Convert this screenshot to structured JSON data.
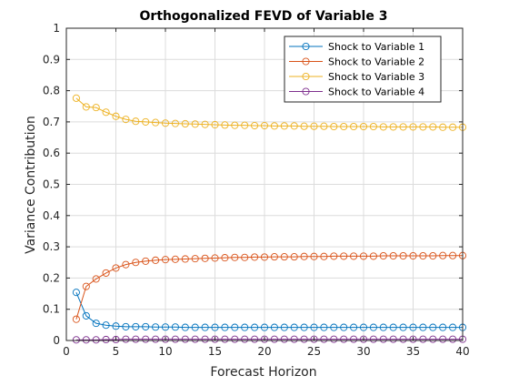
{
  "chart_data": {
    "type": "line",
    "title": "Orthogonalized FEVD of Variable 3",
    "xlabel": "Forecast Horizon",
    "ylabel": "Variance Contribution",
    "xlim": [
      0,
      40
    ],
    "ylim": [
      0,
      1
    ],
    "xticks": [
      "0",
      "5",
      "10",
      "15",
      "20",
      "25",
      "30",
      "35",
      "40"
    ],
    "yticks": [
      "0",
      "0.1",
      "0.2",
      "0.3",
      "0.4",
      "0.5",
      "0.6",
      "0.7",
      "0.8",
      "0.9",
      "1"
    ],
    "grid": true,
    "legend_position": "top-right",
    "marker": "circle",
    "x": [
      1,
      2,
      3,
      4,
      5,
      6,
      7,
      8,
      9,
      10,
      11,
      12,
      13,
      14,
      15,
      16,
      17,
      18,
      19,
      20,
      21,
      22,
      23,
      24,
      25,
      26,
      27,
      28,
      29,
      30,
      31,
      32,
      33,
      34,
      35,
      36,
      37,
      38,
      39,
      40
    ],
    "series": [
      {
        "name": "Shock to Variable 1",
        "color": "#0072BD",
        "values": [
          0.154,
          0.079,
          0.055,
          0.049,
          0.046,
          0.044,
          0.044,
          0.044,
          0.043,
          0.043,
          0.043,
          0.042,
          0.042,
          0.042,
          0.042,
          0.042,
          0.042,
          0.042,
          0.042,
          0.042,
          0.042,
          0.042,
          0.042,
          0.042,
          0.042,
          0.042,
          0.042,
          0.042,
          0.042,
          0.042,
          0.042,
          0.042,
          0.042,
          0.042,
          0.042,
          0.042,
          0.042,
          0.042,
          0.042,
          0.042
        ]
      },
      {
        "name": "Shock to Variable 2",
        "color": "#D95319",
        "values": [
          0.068,
          0.173,
          0.197,
          0.216,
          0.232,
          0.243,
          0.25,
          0.254,
          0.257,
          0.259,
          0.26,
          0.261,
          0.262,
          0.263,
          0.264,
          0.265,
          0.266,
          0.266,
          0.267,
          0.267,
          0.268,
          0.268,
          0.268,
          0.269,
          0.269,
          0.269,
          0.27,
          0.27,
          0.27,
          0.27,
          0.27,
          0.271,
          0.271,
          0.271,
          0.271,
          0.271,
          0.271,
          0.272,
          0.272,
          0.272
        ]
      },
      {
        "name": "Shock to Variable 3",
        "color": "#EDB120",
        "values": [
          0.776,
          0.748,
          0.746,
          0.731,
          0.718,
          0.708,
          0.702,
          0.7,
          0.698,
          0.696,
          0.695,
          0.694,
          0.693,
          0.692,
          0.691,
          0.69,
          0.689,
          0.689,
          0.688,
          0.688,
          0.687,
          0.687,
          0.687,
          0.686,
          0.686,
          0.686,
          0.685,
          0.685,
          0.685,
          0.685,
          0.685,
          0.684,
          0.684,
          0.684,
          0.684,
          0.684,
          0.684,
          0.683,
          0.683,
          0.683
        ]
      },
      {
        "name": "Shock to Variable 4",
        "color": "#7E2F8E",
        "values": [
          0.002,
          0.002,
          0.002,
          0.003,
          0.003,
          0.004,
          0.004,
          0.004,
          0.004,
          0.004,
          0.004,
          0.004,
          0.004,
          0.004,
          0.004,
          0.004,
          0.004,
          0.004,
          0.004,
          0.004,
          0.004,
          0.004,
          0.004,
          0.004,
          0.004,
          0.004,
          0.004,
          0.004,
          0.004,
          0.004,
          0.004,
          0.004,
          0.004,
          0.004,
          0.004,
          0.004,
          0.004,
          0.004,
          0.004,
          0.004
        ]
      }
    ]
  }
}
